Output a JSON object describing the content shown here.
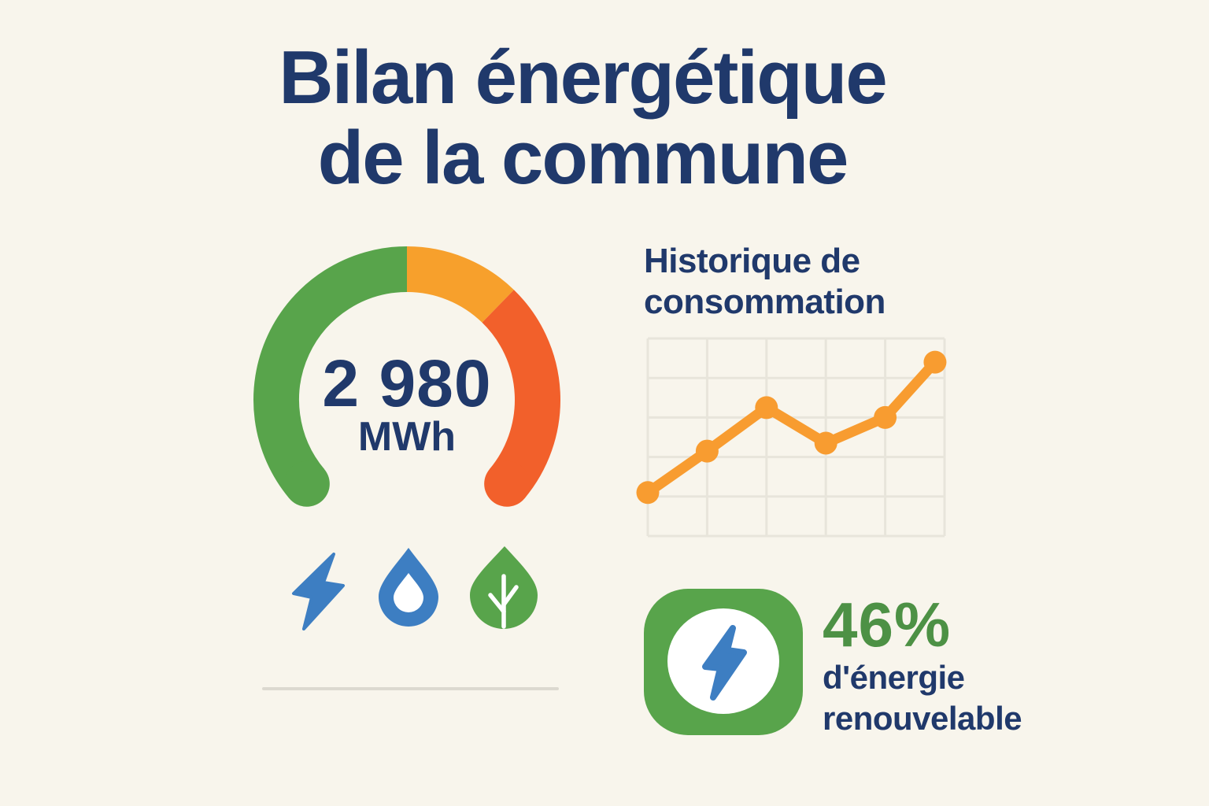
{
  "colors": {
    "bg": "#F8F5EC",
    "navy": "#20396B",
    "green": "#58A44B",
    "green_text": "#4D9145",
    "amber": "#F7A02C",
    "orange": "#F2602B",
    "chart_orange": "#F89C30",
    "blue": "#3D7EC2",
    "grid": "#E8E5DB",
    "divider": "#DCD9D0",
    "white": "#FFFFFF"
  },
  "title": {
    "line1": "Bilan énergétique",
    "line2": "de la commune"
  },
  "gauge": {
    "value": "2 980",
    "unit": "MWh",
    "start_angle": 220,
    "end_angle": -40,
    "segments": [
      {
        "name": "green-zone",
        "fraction": 0.5,
        "color": "#58A44B"
      },
      {
        "name": "amber-zone",
        "fraction": 0.17,
        "color": "#F7A02C"
      },
      {
        "name": "orange-zone",
        "fraction": 0.33,
        "color": "#F2602B"
      }
    ]
  },
  "energy_icons": [
    {
      "name": "lightning"
    },
    {
      "name": "water-drop"
    },
    {
      "name": "leaf"
    }
  ],
  "chart_data": {
    "type": "line",
    "title": "Historique de consommation",
    "series_name": "consommation",
    "x": [
      0,
      1,
      2,
      3,
      4,
      4.84
    ],
    "values": [
      22,
      43,
      65,
      47,
      60,
      88
    ],
    "xlim": [
      0,
      5
    ],
    "ylim": [
      0,
      100
    ],
    "x_gridlines": 6,
    "y_gridlines": 6,
    "grid": "on",
    "legend": "none",
    "xlabel": "",
    "ylabel": "",
    "line_color": "#F89C30",
    "grid_color": "#E8E5DB"
  },
  "renewable": {
    "percent": "46%",
    "line1": "d'énergie",
    "line2": "renouvelable"
  }
}
